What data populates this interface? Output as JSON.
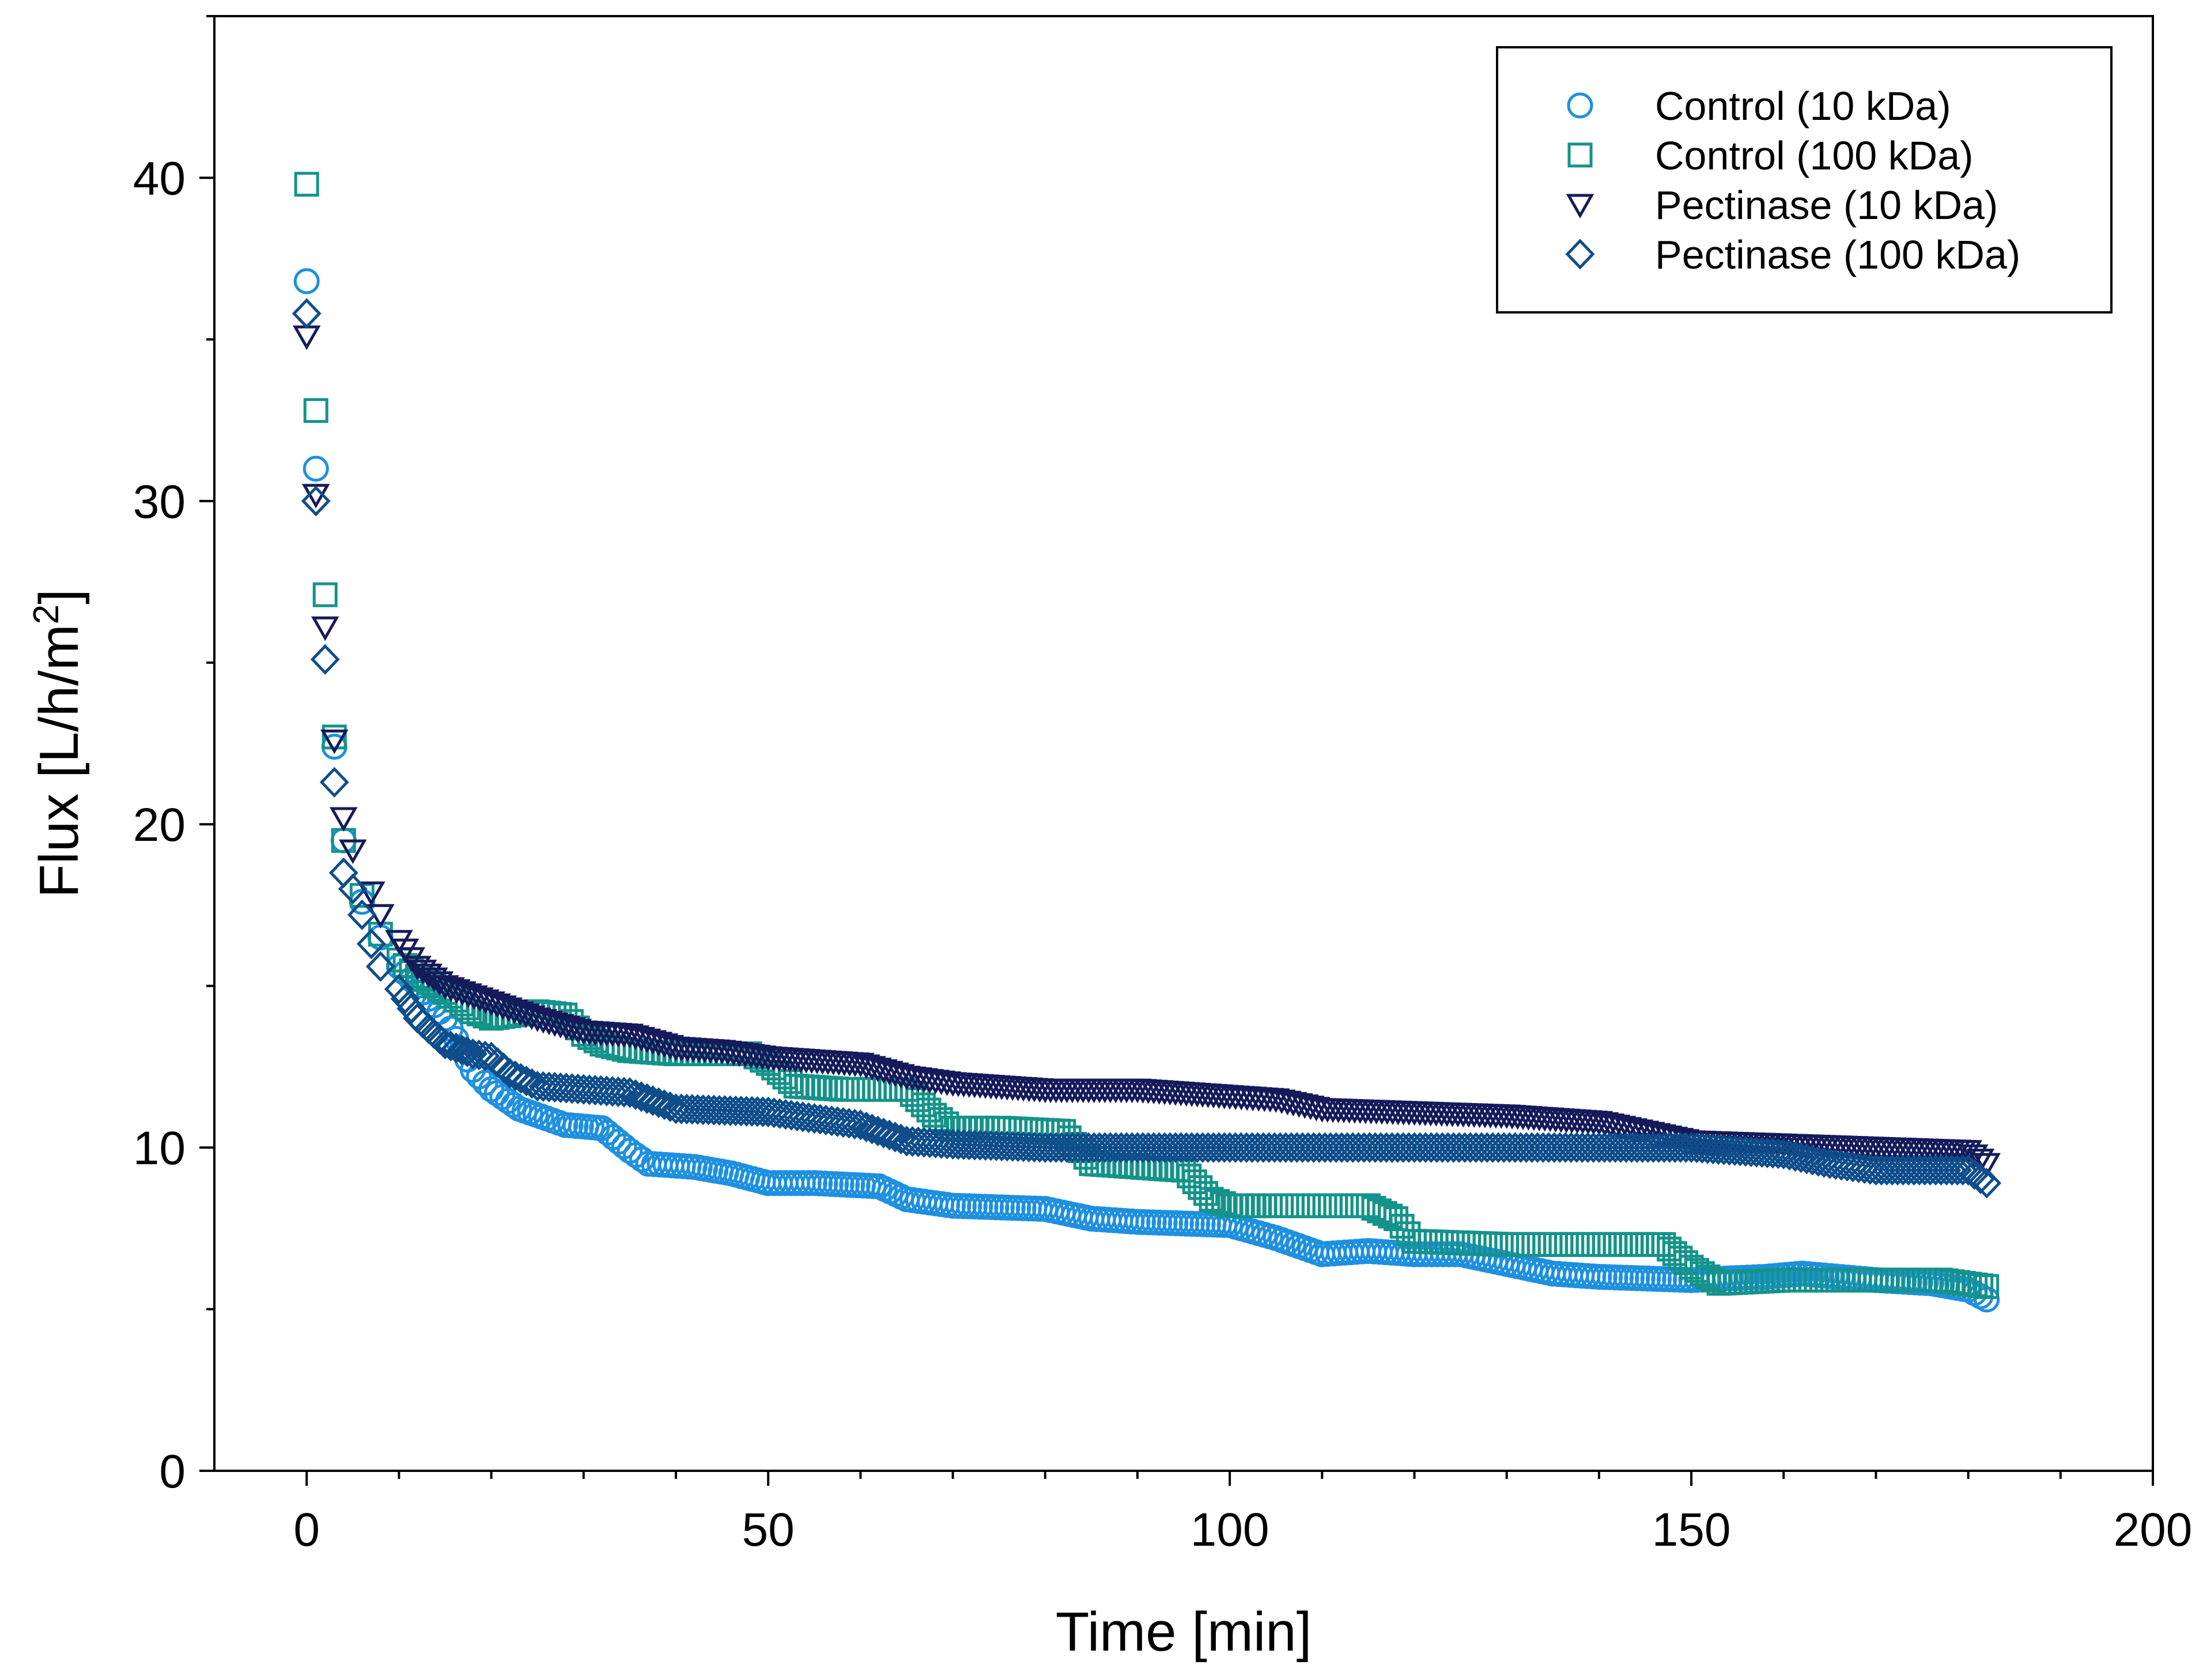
{
  "chart_data": {
    "type": "scatter",
    "title": "",
    "xlabel": "Time [min]",
    "ylabel": "Flux [L/h/m",
    "ylabel_superscript": "2",
    "ylabel_close": "]",
    "xlim": [
      -10,
      200
    ],
    "ylim": [
      0,
      45
    ],
    "x_ticks": [
      0,
      50,
      100,
      150,
      200
    ],
    "x_tick_labels": [
      "0",
      "50",
      "100",
      "150",
      "200"
    ],
    "x_minor_ticks": [
      10,
      20,
      30,
      40,
      60,
      70,
      80,
      90,
      110,
      120,
      130,
      140,
      160,
      170,
      180,
      190
    ],
    "y_ticks": [
      0,
      10,
      20,
      30,
      40
    ],
    "y_tick_labels": [
      "0",
      "10",
      "20",
      "30",
      "40"
    ],
    "y_minor_ticks": [
      5,
      15,
      25,
      35,
      45
    ],
    "grid": false,
    "legend_position": "top-right",
    "series": [
      {
        "name": "Control (10 kDa)",
        "marker": "circle",
        "color": "#1E90E0",
        "points": [
          [
            0,
            36.8
          ],
          [
            1,
            31.0
          ],
          [
            3,
            22.4
          ],
          [
            4,
            19.5
          ],
          [
            6,
            17.6
          ],
          [
            8,
            16.5
          ],
          [
            10,
            15.6
          ],
          [
            12,
            15.0
          ],
          [
            15,
            14.0
          ],
          [
            18,
            12.4
          ],
          [
            20,
            11.8
          ],
          [
            23,
            11.2
          ],
          [
            26,
            10.9
          ],
          [
            28,
            10.7
          ],
          [
            32,
            10.6
          ],
          [
            35,
            9.9
          ],
          [
            37,
            9.5
          ],
          [
            42,
            9.4
          ],
          [
            46,
            9.2
          ],
          [
            50,
            8.9
          ],
          [
            55,
            8.9
          ],
          [
            62,
            8.8
          ],
          [
            65,
            8.4
          ],
          [
            70,
            8.2
          ],
          [
            80,
            8.1
          ],
          [
            85,
            7.8
          ],
          [
            90,
            7.7
          ],
          [
            100,
            7.6
          ],
          [
            105,
            7.2
          ],
          [
            110,
            6.7
          ],
          [
            115,
            6.8
          ],
          [
            120,
            6.7
          ],
          [
            125,
            6.7
          ],
          [
            130,
            6.4
          ],
          [
            135,
            6.1
          ],
          [
            140,
            6.0
          ],
          [
            150,
            5.9
          ],
          [
            158,
            6.0
          ],
          [
            162,
            6.1
          ],
          [
            170,
            5.9
          ],
          [
            176,
            5.8
          ],
          [
            180,
            5.6
          ],
          [
            182,
            5.3
          ]
        ]
      },
      {
        "name": "Control (100 kDa)",
        "marker": "square",
        "color": "#14938A",
        "points": [
          [
            0,
            39.8
          ],
          [
            1,
            32.8
          ],
          [
            2,
            27.1
          ],
          [
            3,
            22.7
          ],
          [
            4,
            19.5
          ],
          [
            6,
            17.8
          ],
          [
            8,
            16.6
          ],
          [
            10,
            15.8
          ],
          [
            12,
            15.3
          ],
          [
            15,
            14.8
          ],
          [
            18,
            14.2
          ],
          [
            20,
            14.0
          ],
          [
            25,
            14.2
          ],
          [
            28,
            14.1
          ],
          [
            30,
            13.5
          ],
          [
            32,
            13.2
          ],
          [
            35,
            13.0
          ],
          [
            40,
            12.9
          ],
          [
            45,
            12.9
          ],
          [
            48,
            12.9
          ],
          [
            50,
            12.6
          ],
          [
            53,
            11.9
          ],
          [
            58,
            11.8
          ],
          [
            65,
            11.8
          ],
          [
            68,
            11.0
          ],
          [
            70,
            10.6
          ],
          [
            75,
            10.6
          ],
          [
            82,
            10.5
          ],
          [
            85,
            9.5
          ],
          [
            90,
            9.4
          ],
          [
            95,
            9.3
          ],
          [
            98,
            8.4
          ],
          [
            100,
            8.2
          ],
          [
            105,
            8.2
          ],
          [
            115,
            8.2
          ],
          [
            118,
            7.8
          ],
          [
            120,
            7.1
          ],
          [
            130,
            7.0
          ],
          [
            140,
            7.0
          ],
          [
            147,
            7.0
          ],
          [
            150,
            6.3
          ],
          [
            153,
            5.8
          ],
          [
            160,
            5.9
          ],
          [
            170,
            5.9
          ],
          [
            177,
            5.9
          ],
          [
            182,
            5.7
          ]
        ]
      },
      {
        "name": "Pectinase (10 kDa)",
        "marker": "triangle-down",
        "color": "#151A5A",
        "points": [
          [
            0,
            35.1
          ],
          [
            1,
            30.2
          ],
          [
            2,
            26.1
          ],
          [
            3,
            22.6
          ],
          [
            4,
            20.2
          ],
          [
            5,
            19.2
          ],
          [
            7,
            17.9
          ],
          [
            8,
            17.2
          ],
          [
            10,
            16.4
          ],
          [
            12,
            15.6
          ],
          [
            15,
            15.0
          ],
          [
            20,
            14.5
          ],
          [
            25,
            14.0
          ],
          [
            30,
            13.6
          ],
          [
            35,
            13.5
          ],
          [
            40,
            13.1
          ],
          [
            45,
            13.0
          ],
          [
            50,
            12.8
          ],
          [
            60,
            12.6
          ],
          [
            65,
            12.2
          ],
          [
            70,
            12.0
          ],
          [
            80,
            11.8
          ],
          [
            90,
            11.8
          ],
          [
            100,
            11.6
          ],
          [
            105,
            11.5
          ],
          [
            110,
            11.2
          ],
          [
            120,
            11.1
          ],
          [
            130,
            11.0
          ],
          [
            140,
            10.8
          ],
          [
            145,
            10.5
          ],
          [
            150,
            10.2
          ],
          [
            160,
            10.1
          ],
          [
            170,
            10.0
          ],
          [
            180,
            9.9
          ],
          [
            182,
            9.5
          ]
        ]
      },
      {
        "name": "Pectinase (100 kDa)",
        "marker": "diamond",
        "color": "#0F4D8A",
        "points": [
          [
            0,
            35.8
          ],
          [
            1,
            30.0
          ],
          [
            2,
            25.1
          ],
          [
            3,
            21.3
          ],
          [
            4,
            18.5
          ],
          [
            5,
            18.0
          ],
          [
            6,
            17.2
          ],
          [
            7,
            16.3
          ],
          [
            8,
            15.6
          ],
          [
            10,
            14.9
          ],
          [
            12,
            14.0
          ],
          [
            15,
            13.2
          ],
          [
            18,
            12.9
          ],
          [
            20,
            12.8
          ],
          [
            22,
            12.3
          ],
          [
            25,
            11.9
          ],
          [
            30,
            11.8
          ],
          [
            35,
            11.7
          ],
          [
            40,
            11.2
          ],
          [
            50,
            11.1
          ],
          [
            55,
            10.9
          ],
          [
            60,
            10.7
          ],
          [
            65,
            10.2
          ],
          [
            70,
            10.1
          ],
          [
            80,
            10.0
          ],
          [
            90,
            10.0
          ],
          [
            100,
            10.0
          ],
          [
            120,
            10.0
          ],
          [
            140,
            10.0
          ],
          [
            150,
            10.0
          ],
          [
            160,
            9.8
          ],
          [
            165,
            9.5
          ],
          [
            170,
            9.3
          ],
          [
            180,
            9.3
          ],
          [
            182,
            8.9
          ]
        ]
      }
    ]
  }
}
